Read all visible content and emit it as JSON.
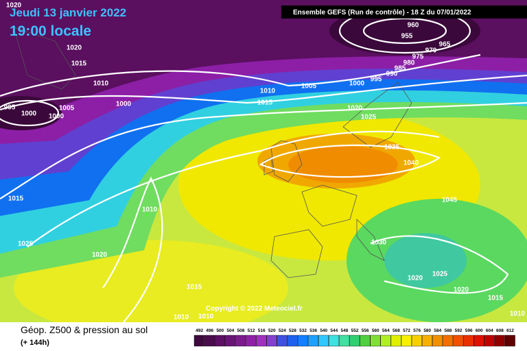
{
  "header": {
    "date": "Jeudi 13 janvier 2022",
    "time": "19:00 locale",
    "run": "Ensemble GEFS  (Run de contrôle)  - 18 Z du 07/01/2022"
  },
  "copyright": "Copyright © 2022 Meteociel.fr",
  "legend": {
    "title": "Géop. Z500 & pression au sol",
    "subtitle": "(+ 144h)",
    "values": [
      492,
      496,
      500,
      504,
      508,
      512,
      516,
      520,
      524,
      528,
      532,
      536,
      540,
      544,
      548,
      552,
      556,
      560,
      564,
      568,
      572,
      576,
      580,
      584,
      588,
      592,
      596,
      600,
      604,
      608,
      612
    ],
    "colors": [
      "#3d0a3d",
      "#4b0c4e",
      "#5c0f63",
      "#6a1478",
      "#7d1a8e",
      "#9020a8",
      "#a030c0",
      "#8040d0",
      "#4050e0",
      "#2060f0",
      "#1080ff",
      "#20a0ff",
      "#30c8ff",
      "#40e0e0",
      "#40e0a0",
      "#30d070",
      "#50d040",
      "#80e030",
      "#b0f020",
      "#e0f000",
      "#f8f000",
      "#f8d000",
      "#f8b000",
      "#f09000",
      "#f07000",
      "#f05000",
      "#e83000",
      "#e01000",
      "#c00000",
      "#900000",
      "#600000"
    ]
  },
  "pressure_labels": [
    "1020",
    "1020",
    "1015",
    "1010",
    "1005",
    "1000",
    "995",
    "1000",
    "1000",
    "1010",
    "1015",
    "1005",
    "1000",
    "995",
    "990",
    "985",
    "980",
    "975",
    "970",
    "965",
    "960",
    "955",
    "1020",
    "1025",
    "1035",
    "1040",
    "1045",
    "1015",
    "1010",
    "1025",
    "1020",
    "1030",
    "1025",
    "1020",
    "1020",
    "1015",
    "1015",
    "1010",
    "1010",
    "1010"
  ]
}
